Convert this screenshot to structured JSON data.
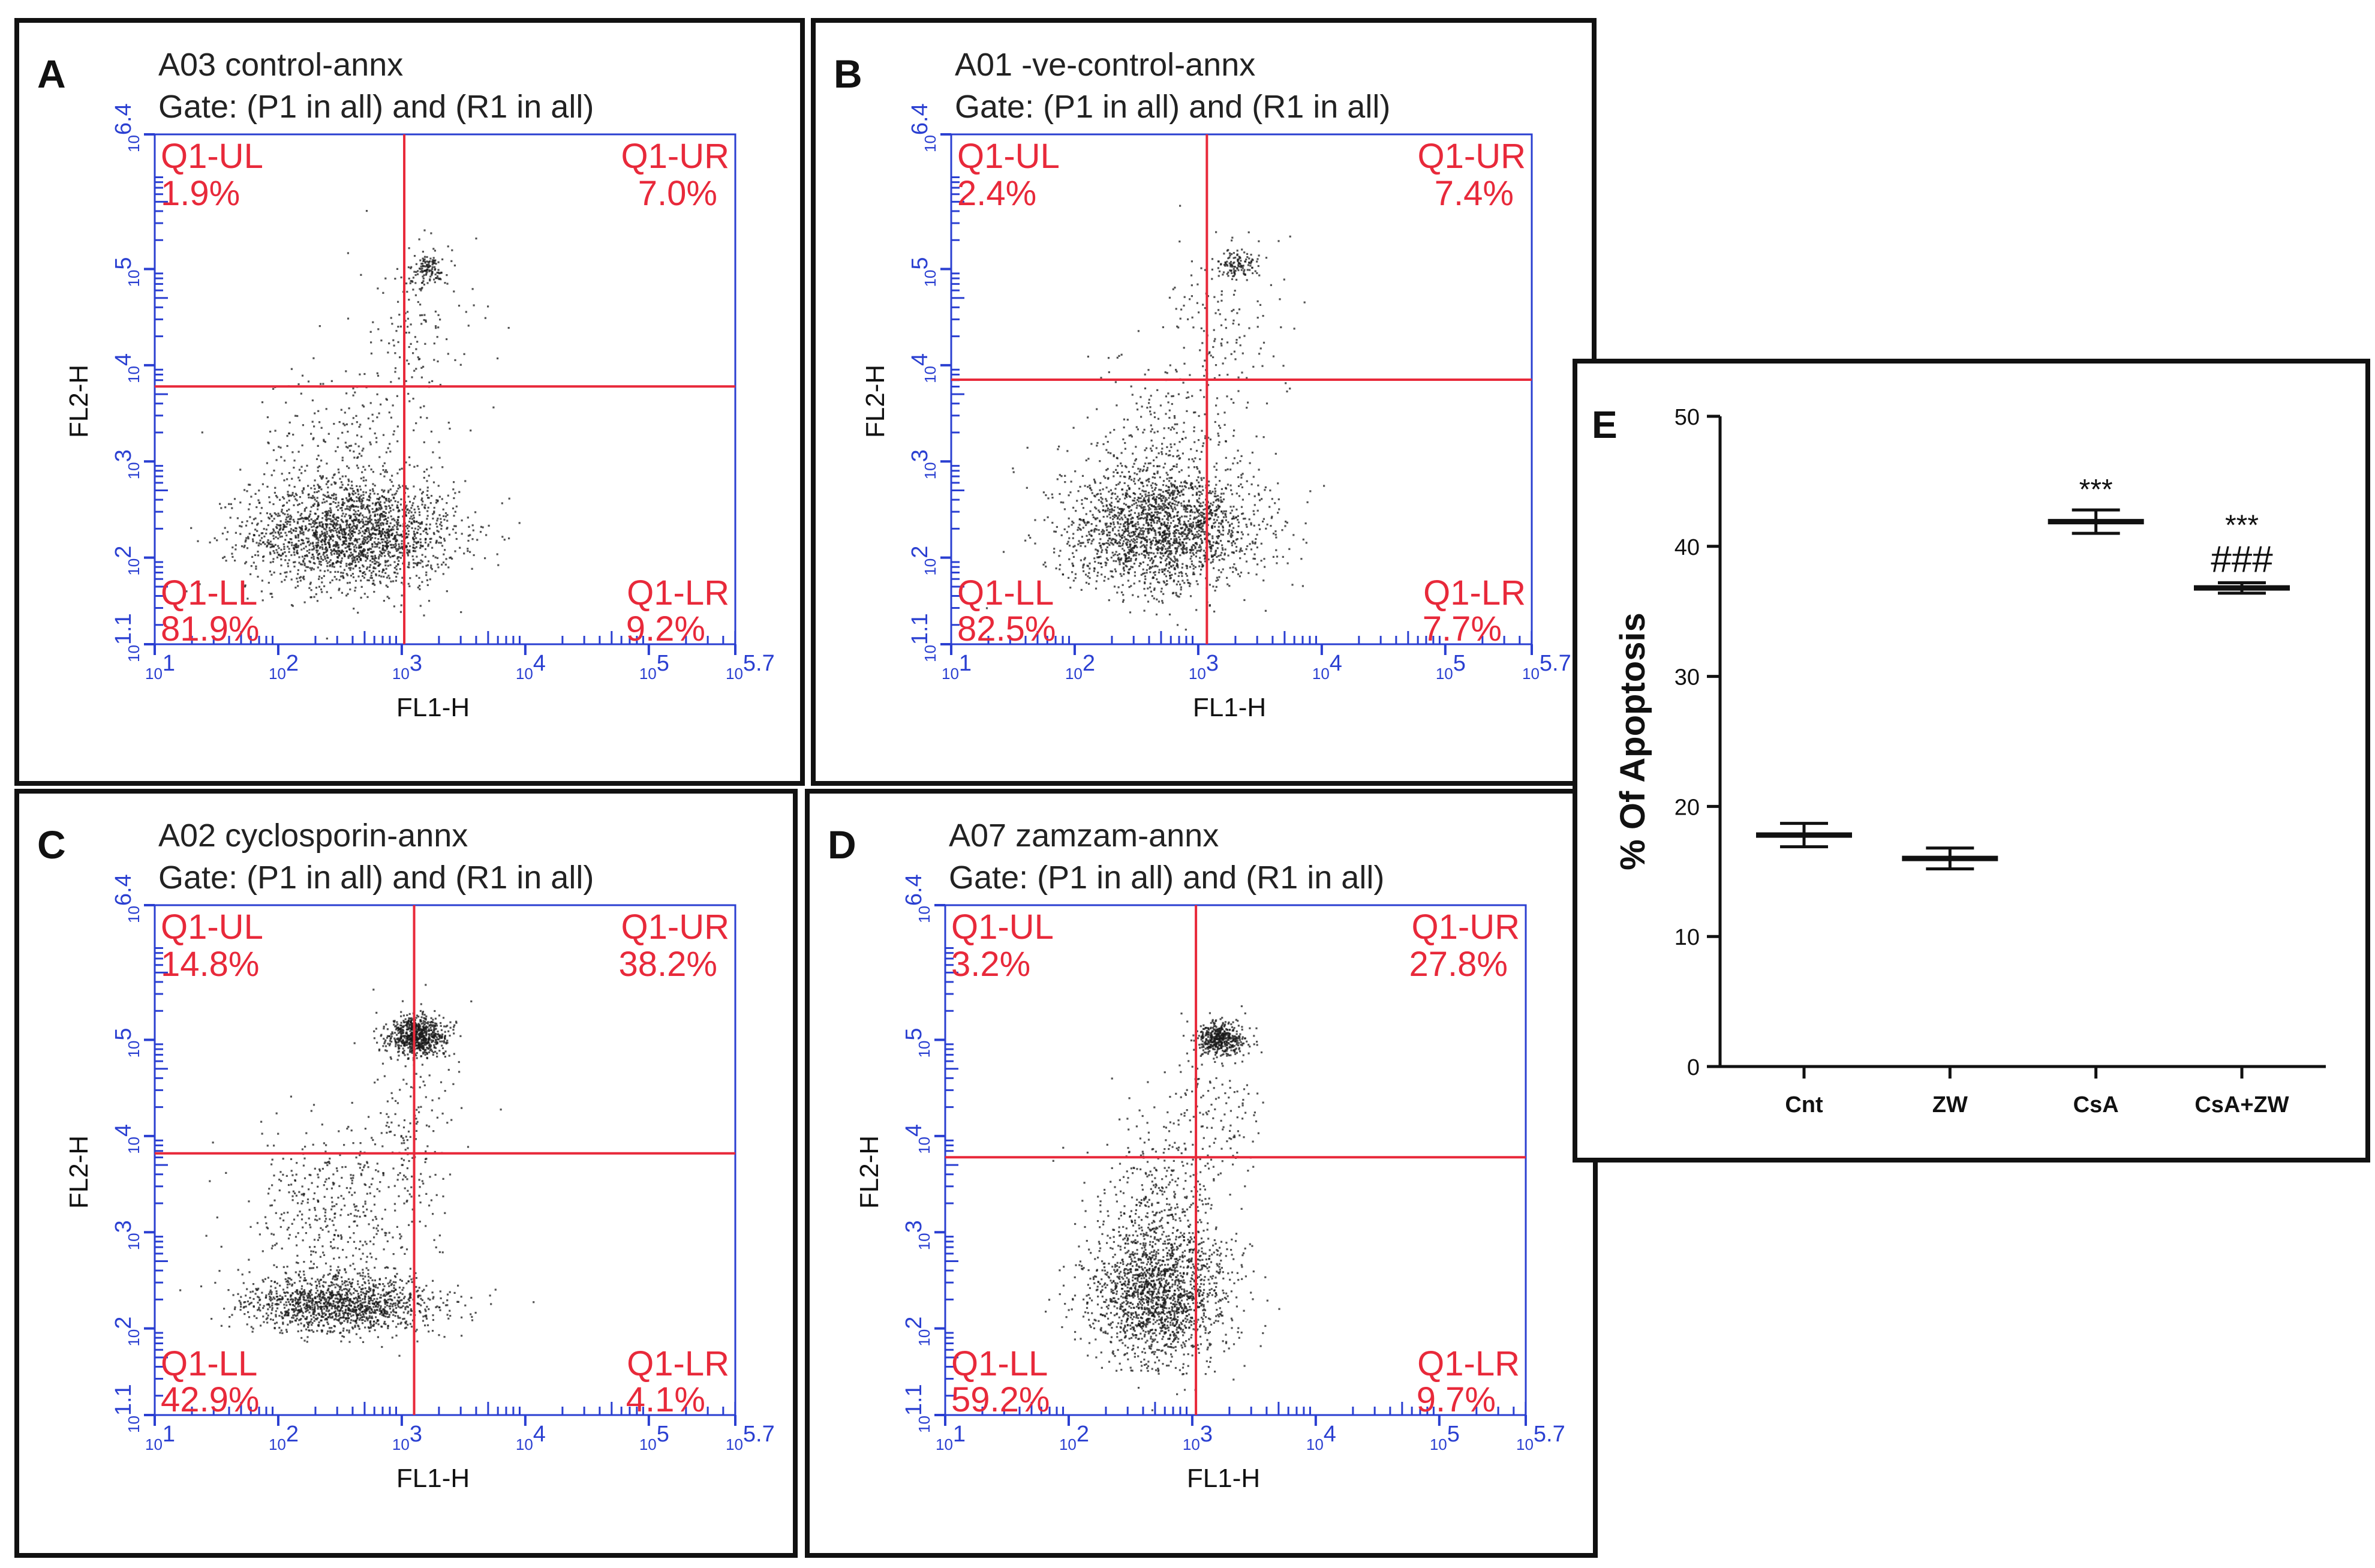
{
  "colors": {
    "axis": "#2a3fd1",
    "gate": "#e8293a",
    "dots": "#1a1a1a",
    "frame": "#111111"
  },
  "flow_axis": {
    "xlabel": "FL1-H",
    "ylabel": "FL2-H",
    "x_ticks": [
      "1",
      "2",
      "3",
      "4",
      "5",
      "5.7"
    ],
    "y_ticks": [
      "1.1",
      "2",
      "3",
      "4",
      "5",
      "6.4"
    ],
    "tick_prefix": "10"
  },
  "chart_data": [
    {
      "type": "scatter",
      "panel_label": "A",
      "title": "A03 control-annx",
      "gate": "Gate: (P1 in all) and (R1 in all)",
      "gate_x": 3.02,
      "gate_y": 3.78,
      "quadrants": {
        "ul_label": "Q1-UL",
        "ul": "1.9%",
        "ur_label": "Q1-UR",
        "ur": "7.0%",
        "ll_label": "Q1-LL",
        "ll": "81.9%",
        "lr_label": "Q1-LR",
        "lr": "9.2%"
      },
      "clusters": [
        {
          "x": 2.6,
          "y": 2.25,
          "sx": 0.42,
          "sy": 0.28,
          "n": 2000
        },
        {
          "x": 3.2,
          "y": 5.0,
          "sx": 0.08,
          "sy": 0.08,
          "n": 120
        },
        {
          "x": 2.5,
          "y": 3.1,
          "sx": 0.35,
          "sy": 0.45,
          "n": 250
        },
        {
          "x": 3.1,
          "y": 4.3,
          "sx": 0.25,
          "sy": 0.55,
          "n": 150
        }
      ]
    },
    {
      "type": "scatter",
      "panel_label": "B",
      "title": "A01 -ve-control-annx",
      "gate": "Gate: (P1 in all) and (R1 in all)",
      "gate_x": 3.07,
      "gate_y": 3.85,
      "quadrants": {
        "ul_label": "Q1-UL",
        "ul": "2.4%",
        "ur_label": "Q1-UR",
        "ur": "7.4%",
        "ll_label": "Q1-LL",
        "ll": "82.5%",
        "lr_label": "Q1-LR",
        "lr": "7.7%"
      },
      "clusters": [
        {
          "x": 2.7,
          "y": 2.3,
          "sx": 0.4,
          "sy": 0.32,
          "n": 2000
        },
        {
          "x": 3.3,
          "y": 5.05,
          "sx": 0.09,
          "sy": 0.08,
          "n": 120
        },
        {
          "x": 2.75,
          "y": 3.2,
          "sx": 0.3,
          "sy": 0.45,
          "n": 250
        },
        {
          "x": 3.2,
          "y": 4.4,
          "sx": 0.25,
          "sy": 0.5,
          "n": 140
        }
      ]
    },
    {
      "type": "scatter",
      "panel_label": "C",
      "title": "A02 cyclosporin-annx",
      "gate": "Gate: (P1 in all) and (R1 in all)",
      "gate_x": 3.1,
      "gate_y": 3.82,
      "quadrants": {
        "ul_label": "Q1-UL",
        "ul": "14.8%",
        "ur_label": "Q1-UR",
        "ur": "38.2%",
        "ll_label": "Q1-LL",
        "ll": "42.9%",
        "lr_label": "Q1-LR",
        "lr": "4.1%"
      },
      "clusters": [
        {
          "x": 2.5,
          "y": 2.25,
          "sx": 0.38,
          "sy": 0.15,
          "n": 1300
        },
        {
          "x": 3.12,
          "y": 5.05,
          "sx": 0.12,
          "sy": 0.1,
          "n": 700
        },
        {
          "x": 2.45,
          "y": 3.25,
          "sx": 0.35,
          "sy": 0.45,
          "n": 450
        },
        {
          "x": 3.1,
          "y": 4.3,
          "sx": 0.18,
          "sy": 0.55,
          "n": 160
        }
      ]
    },
    {
      "type": "scatter",
      "panel_label": "D",
      "title": "A07 zamzam-annx",
      "gate": "Gate: (P1 in all) and (R1 in all)",
      "gate_x": 3.03,
      "gate_y": 3.78,
      "quadrants": {
        "ul_label": "Q1-UL",
        "ul": "3.2%",
        "ur_label": "Q1-UR",
        "ur": "27.8%",
        "ll_label": "Q1-LL",
        "ll": "59.2%",
        "lr_label": "Q1-LR",
        "lr": "9.7%"
      },
      "clusters": [
        {
          "x": 2.72,
          "y": 2.35,
          "sx": 0.28,
          "sy": 0.35,
          "n": 1700
        },
        {
          "x": 3.22,
          "y": 5.02,
          "sx": 0.1,
          "sy": 0.08,
          "n": 450
        },
        {
          "x": 2.72,
          "y": 3.3,
          "sx": 0.25,
          "sy": 0.4,
          "n": 350
        },
        {
          "x": 3.15,
          "y": 4.3,
          "sx": 0.2,
          "sy": 0.45,
          "n": 150
        }
      ]
    },
    {
      "type": "scatter",
      "panel_label": "E",
      "title": "",
      "ylabel": "% Of Apoptosis",
      "xlabel": "",
      "ylim": [
        0,
        50
      ],
      "y_ticks": [
        "0",
        "10",
        "20",
        "30",
        "40",
        "50"
      ],
      "categories": [
        "Cnt",
        "ZW",
        "CsA",
        "CsA+ZW"
      ],
      "means": [
        17.8,
        16.0,
        41.9,
        36.8
      ],
      "errors": [
        0.9,
        0.8,
        0.9,
        0.4
      ],
      "significance": [
        "",
        "",
        "***",
        "***\n###"
      ]
    }
  ]
}
